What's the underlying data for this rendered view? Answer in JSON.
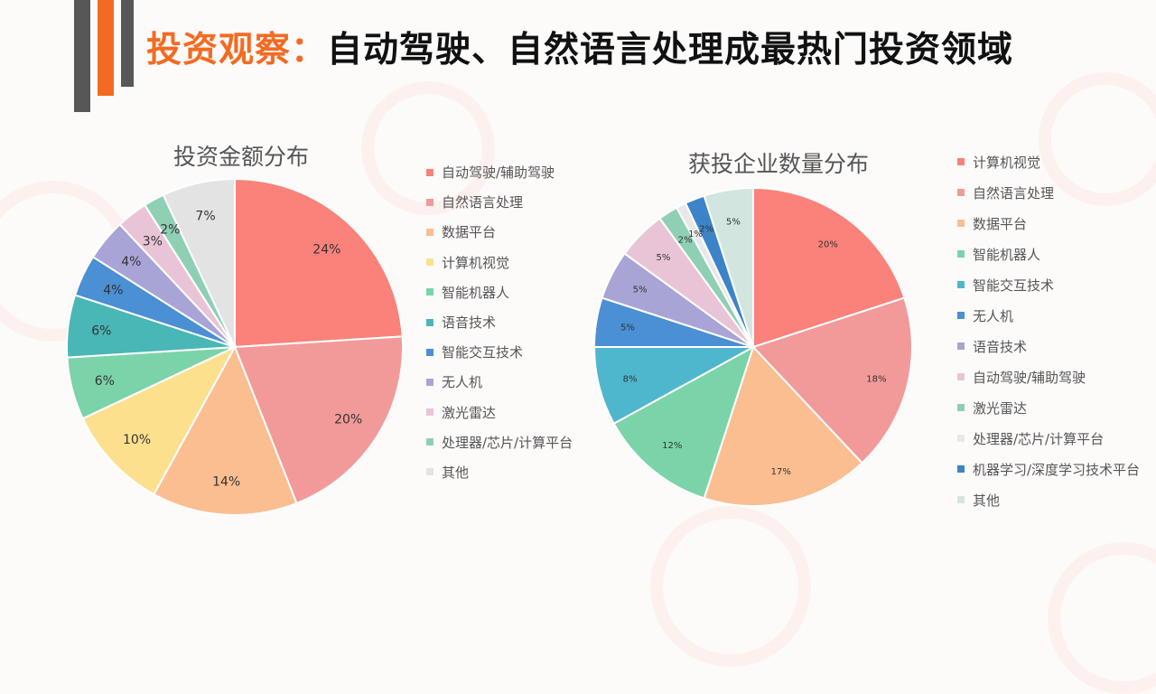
{
  "title": {
    "accent": "投资观察：",
    "main": "自动驾驶、自然语言处理成最热门投资领域"
  },
  "chart_data": [
    {
      "type": "pie",
      "title": "投资金额分布",
      "slices": [
        {
          "label": "自动驾驶/辅助驾驶",
          "value": 24,
          "display": "24%",
          "color": "#fb827a"
        },
        {
          "label": "自然语言处理",
          "value": 20,
          "display": "20%",
          "color": "#f29a9a"
        },
        {
          "label": "数据平台",
          "value": 14,
          "display": "14%",
          "color": "#fbbe91"
        },
        {
          "label": "计算机视觉",
          "value": 10,
          "display": "10%",
          "color": "#fde08e"
        },
        {
          "label": "智能机器人",
          "value": 6,
          "display": "6%",
          "color": "#7bd4a9"
        },
        {
          "label": "语音技术",
          "value": 6,
          "display": "6%",
          "color": "#48b7b6"
        },
        {
          "label": "智能交互技术",
          "value": 4,
          "display": "4%",
          "color": "#4b8fd4"
        },
        {
          "label": "无人机",
          "value": 4,
          "display": "4%",
          "color": "#a9a4d6"
        },
        {
          "label": "激光雷达",
          "value": 3,
          "display": "3%",
          "color": "#e9c4d7"
        },
        {
          "label": "处理器/芯片/计算平台",
          "value": 2,
          "display": "2%",
          "color": "#8fd0b5"
        },
        {
          "label": "其他",
          "value": 7,
          "display": "7%",
          "color": "#e3e3e3"
        }
      ],
      "legend_position": "right"
    },
    {
      "type": "pie",
      "title": "获投企业数量分布",
      "slices": [
        {
          "label": "计算机视觉",
          "value": 20,
          "display": "20%",
          "color": "#fb827a"
        },
        {
          "label": "自然语言处理",
          "value": 18,
          "display": "18%",
          "color": "#f29a9a"
        },
        {
          "label": "数据平台",
          "value": 17,
          "display": "17%",
          "color": "#fbbe91"
        },
        {
          "label": "智能机器人",
          "value": 12,
          "display": "12%",
          "color": "#7bd4a9"
        },
        {
          "label": "智能交互技术",
          "value": 8,
          "display": "8%",
          "color": "#4fb7cd"
        },
        {
          "label": "无人机",
          "value": 5,
          "display": "5%",
          "color": "#4b8fd4"
        },
        {
          "label": "语音技术",
          "value": 5,
          "display": "5%",
          "color": "#a9a4d6"
        },
        {
          "label": "自动驾驶/辅助驾驶",
          "value": 5,
          "display": "5%",
          "color": "#e9c4d7"
        },
        {
          "label": "激光雷达",
          "value": 2,
          "display": "2%",
          "color": "#8fd0b5"
        },
        {
          "label": "处理器/芯片/计算平台",
          "value": 1,
          "display": "1%",
          "color": "#e8e8e8"
        },
        {
          "label": "机器学习/深度学习技术平台",
          "value": 2,
          "display": "2%",
          "color": "#3c84c8"
        },
        {
          "label": "其他",
          "value": 5,
          "display": "5%",
          "color": "#d2e6df"
        }
      ],
      "legend_position": "right"
    }
  ]
}
